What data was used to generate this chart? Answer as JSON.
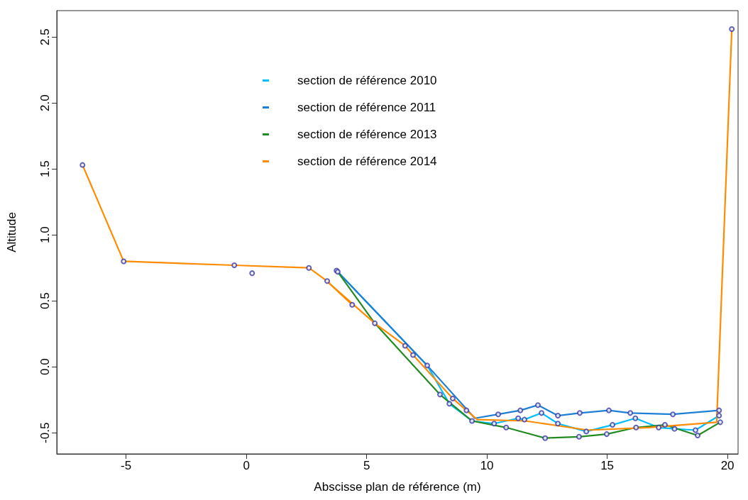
{
  "chart_data": {
    "type": "line",
    "xlabel": "Abscisse plan de référence (m)",
    "ylabel": "Altitude",
    "xlim": [
      -7.88,
      20.44
    ],
    "xticks": [
      -5,
      0,
      5,
      10,
      15,
      20
    ],
    "ylim": [
      -0.66,
      2.7
    ],
    "yticks": [
      {
        "value": -0.5,
        "label": "-0.5"
      },
      {
        "value": 0,
        "label": "0.0"
      },
      {
        "value": 0.5,
        "label": "0.5"
      },
      {
        "value": 1,
        "label": "1.0"
      },
      {
        "value": 1.5,
        "label": "1.5"
      },
      {
        "value": 2,
        "label": "2.0"
      },
      {
        "value": 2.5,
        "label": "2.5"
      }
    ],
    "grid": false,
    "legend": "top",
    "marker": "none",
    "line_style": "solid",
    "series": [
      {
        "name": "section de référence 2010",
        "color": "#00bfff",
        "x": [
          3.8,
          7.52,
          8.44,
          9.38,
          10.3,
          11.3,
          11.56,
          12.27,
          12.95,
          14.13,
          15.22,
          16.17,
          17.14,
          17.8,
          18.67,
          19.65
        ],
        "values": [
          0.72,
          0.01,
          -0.28,
          -0.41,
          -0.43,
          -0.39,
          -0.4,
          -0.35,
          -0.43,
          -0.49,
          -0.44,
          -0.39,
          -0.46,
          -0.47,
          -0.48,
          -0.37
        ]
      },
      {
        "name": "section de référence 2011",
        "color": "#1e7fd6",
        "x": [
          3.75,
          7.52,
          9.5,
          10.47,
          11.39,
          12.12,
          12.95,
          13.86,
          15.07,
          15.96,
          17.73,
          19.65
        ],
        "values": [
          0.73,
          0.01,
          -0.39,
          -0.36,
          -0.33,
          -0.29,
          -0.37,
          -0.35,
          -0.33,
          -0.35,
          -0.36,
          -0.33
        ]
      },
      {
        "name": "section de référence 2013",
        "color": "#228b22",
        "x": [
          3.8,
          5.34,
          8.05,
          9.38,
          10.8,
          12.42,
          13.83,
          14.98,
          16.2,
          17.4,
          18.76,
          19.7
        ],
        "values": [
          0.72,
          0.33,
          -0.21,
          -0.41,
          -0.46,
          -0.54,
          -0.53,
          -0.51,
          -0.46,
          -0.44,
          -0.52,
          -0.42
        ]
      },
      {
        "name": "section de référence 2014",
        "color": "#ff8c00",
        "x": [
          -6.81,
          -5.1,
          -0.5,
          2.6,
          3.36,
          4.4,
          3.4,
          5.34,
          6.6,
          6.93,
          8.58,
          9.15,
          9.6,
          11.6,
          14.2,
          16.7,
          19.55,
          20.18
        ],
        "values": [
          1.53,
          0.8,
          0.77,
          0.75,
          0.65,
          0.47,
          0.64,
          0.33,
          0.16,
          0.09,
          -0.24,
          -0.33,
          -0.4,
          -0.41,
          -0.48,
          -0.46,
          -0.42,
          2.56
        ]
      },
      {
        "type": "scatter",
        "marker": "circle",
        "color": "#3a3aa8",
        "x": [
          -6.81,
          -5.1,
          -0.5,
          0.24,
          2.6,
          3.36,
          4.4,
          3.75,
          3.8,
          5.34,
          6.6,
          6.93,
          7.52,
          8.05,
          8.44,
          8.58,
          9.15,
          9.38,
          10.3,
          10.47,
          10.8,
          11.3,
          11.39,
          11.56,
          12.12,
          12.27,
          12.42,
          12.95,
          12.95,
          13.83,
          13.86,
          14.13,
          14.98,
          15.07,
          15.22,
          15.96,
          16.17,
          16.2,
          17.14,
          17.4,
          17.73,
          17.8,
          18.67,
          18.76,
          19.65,
          19.65,
          19.7,
          20.18
        ],
        "values": [
          1.53,
          0.8,
          0.77,
          0.71,
          0.75,
          0.65,
          0.47,
          0.73,
          0.72,
          0.33,
          0.16,
          0.09,
          0.01,
          -0.21,
          -0.28,
          -0.24,
          -0.33,
          -0.41,
          -0.43,
          -0.36,
          -0.46,
          -0.39,
          -0.33,
          -0.4,
          -0.29,
          -0.35,
          -0.54,
          -0.43,
          -0.37,
          -0.53,
          -0.35,
          -0.49,
          -0.51,
          -0.33,
          -0.44,
          -0.35,
          -0.39,
          -0.46,
          -0.46,
          -0.44,
          -0.36,
          -0.47,
          -0.48,
          -0.52,
          -0.37,
          -0.33,
          -0.42,
          2.56
        ]
      }
    ]
  }
}
